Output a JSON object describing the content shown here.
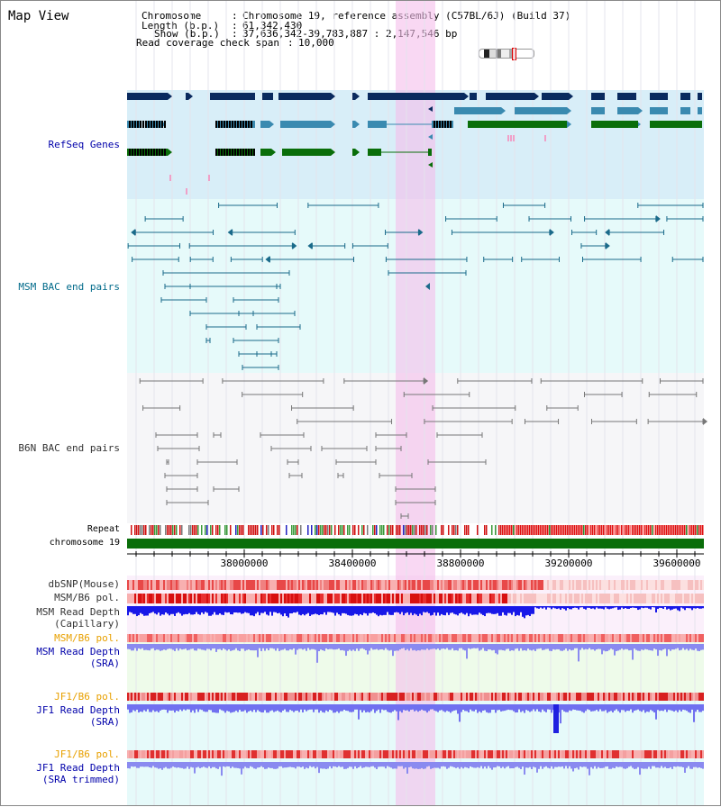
{
  "page": {
    "title": "Map View"
  },
  "header": {
    "chromosome_key": "Chromosome",
    "chromosome_val": "Chromosome 19, reference assembly (C57BL/6J) (Build 37)",
    "length_key": "Length (b.p.)",
    "length_val": "61,342,430",
    "show_key": "Show (b.p.)",
    "show_val": "37,636,342-39,783,887 : 2,147,546 bp",
    "coverage_key": "Read coverage check span",
    "coverage_val": "10,000"
  },
  "tracks": {
    "refseq": "RefSeq Genes",
    "msm_bac": "MSM BAC end pairs",
    "b6n_bac": "B6N BAC end pairs",
    "repeat": "Repeat",
    "chromosome": "chromosome 19",
    "dbsnp": "dbSNP(Mouse)",
    "msm_b6_pol_1": "MSM/B6 pol.",
    "msm_depth_cap_1": "MSM Read Depth",
    "msm_depth_cap_2": "(Capillary)",
    "msm_b6_pol_2": "MSM/B6 pol.",
    "msm_depth_sra_1": "MSM Read Depth",
    "msm_depth_sra_2": "(SRA)",
    "jf1_pol_1": "JF1/B6 pol.",
    "jf1_depth_sra_1": "JF1 Read Depth",
    "jf1_depth_sra_2": "(SRA)",
    "jf1_pol_2": "JF1/B6 pol.",
    "jf1_depth_trim_1": "JF1 Read Depth",
    "jf1_depth_trim_2": "(SRA trimmed)"
  },
  "axis": {
    "ticks": [
      "38000000",
      "38400000",
      "38800000",
      "39200000",
      "39600000"
    ]
  },
  "colors": {
    "refseq_bg": "#d8eef8",
    "msm_bg": "#e6fafa",
    "b6n_bg": "#f6f6f8",
    "highlight": "#f8d8f0",
    "gene_navy": "#0a2a5e",
    "gene_blue": "#3a8ab0",
    "gene_green": "#0a6e0a",
    "msm_line": "#1a6a8a",
    "b6n_line": "#777777",
    "depth_blue": "#2020e0",
    "depth_light": "#7a7af0",
    "label_blue": "#0000aa",
    "label_orange": "#e8a000",
    "label_teal": "#006a8a",
    "label_gray": "#333333"
  }
}
